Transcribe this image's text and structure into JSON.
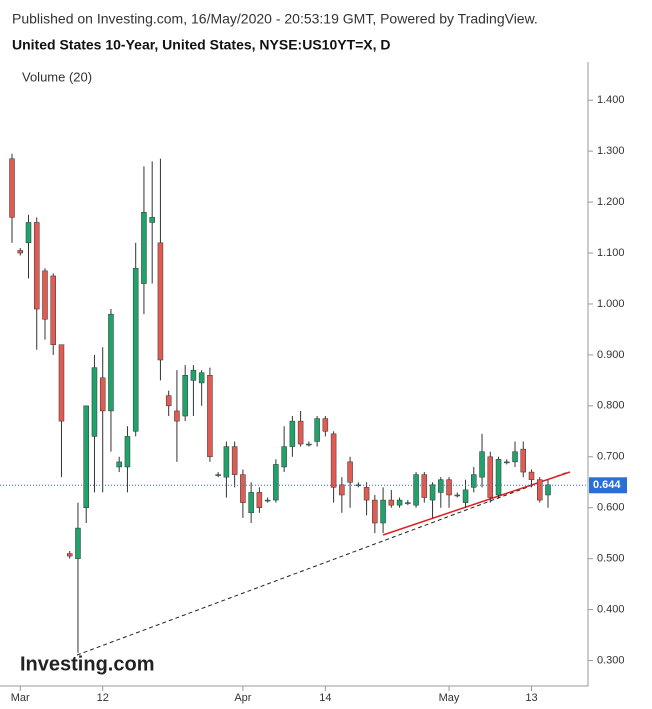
{
  "chart_data": {
    "type": "candlestick",
    "header": "Published on Investing.com, 16/May/2020 - 20:53:19 GMT, Powered by TradingView.",
    "title": "United States 10-Year, United States, NYSE:US10YT=X, D",
    "indicator": "Volume (20)",
    "watermark": "Investing.com",
    "categories": [
      null,
      "Mar",
      null,
      null,
      null,
      null,
      null,
      null,
      null,
      null,
      null,
      "12",
      null,
      null,
      null,
      null,
      null,
      null,
      null,
      null,
      null,
      null,
      null,
      null,
      null,
      null,
      null,
      null,
      "Apr",
      null,
      null,
      null,
      null,
      null,
      null,
      null,
      null,
      null,
      "14",
      null,
      null,
      null,
      null,
      null,
      null,
      null,
      null,
      null,
      null,
      null,
      null,
      null,
      null,
      "May",
      null,
      null,
      null,
      null,
      null,
      null,
      null,
      null,
      null,
      "13",
      null,
      null
    ],
    "open": [
      1.285,
      1.105,
      1.12,
      1.16,
      1.065,
      1.055,
      0.92,
      0.51,
      0.5,
      0.6,
      0.74,
      0.855,
      0.79,
      0.68,
      0.68,
      0.75,
      1.04,
      1.16,
      1.12,
      0.82,
      0.79,
      0.78,
      0.85,
      0.845,
      0.86,
      0.665,
      0.66,
      0.72,
      0.665,
      0.59,
      0.63,
      0.615,
      0.615,
      0.68,
      0.72,
      0.77,
      0.725,
      0.73,
      0.775,
      0.745,
      0.645,
      0.69,
      0.645,
      0.64,
      0.615,
      0.57,
      0.615,
      0.605,
      0.61,
      0.605,
      0.665,
      0.615,
      0.63,
      0.655,
      0.625,
      0.61,
      0.64,
      0.66,
      0.7,
      0.625,
      0.69,
      0.69,
      0.715,
      0.67,
      0.655,
      0.625
    ],
    "high": [
      1.295,
      1.11,
      1.175,
      1.17,
      1.07,
      1.06,
      0.92,
      0.515,
      0.61,
      0.8,
      0.9,
      0.915,
      0.99,
      0.7,
      0.76,
      1.12,
      1.27,
      1.28,
      1.285,
      0.83,
      0.87,
      0.88,
      0.88,
      0.87,
      0.875,
      0.67,
      0.73,
      0.73,
      0.675,
      0.65,
      0.64,
      0.62,
      0.695,
      0.76,
      0.78,
      0.79,
      0.73,
      0.78,
      0.78,
      0.75,
      0.66,
      0.7,
      0.65,
      0.65,
      0.625,
      0.64,
      0.635,
      0.62,
      0.615,
      0.67,
      0.67,
      0.65,
      0.66,
      0.66,
      0.63,
      0.655,
      0.68,
      0.745,
      0.71,
      0.7,
      0.695,
      0.73,
      0.73,
      0.675,
      0.66,
      0.655
    ],
    "low": [
      1.12,
      1.095,
      1.05,
      0.91,
      0.93,
      0.9,
      0.66,
      0.5,
      0.315,
      0.57,
      0.63,
      0.63,
      0.71,
      0.67,
      0.63,
      0.74,
      0.98,
      1.04,
      0.85,
      0.78,
      0.69,
      0.77,
      0.78,
      0.8,
      0.69,
      0.66,
      0.62,
      0.64,
      0.58,
      0.57,
      0.59,
      0.61,
      0.61,
      0.67,
      0.7,
      0.72,
      0.72,
      0.72,
      0.74,
      0.61,
      0.59,
      0.6,
      0.64,
      0.585,
      0.55,
      0.55,
      0.6,
      0.6,
      0.605,
      0.6,
      0.61,
      0.58,
      0.6,
      0.6,
      0.62,
      0.6,
      0.63,
      0.64,
      0.61,
      0.62,
      0.685,
      0.68,
      0.66,
      0.64,
      0.61,
      0.6
    ],
    "close": [
      1.17,
      1.1,
      1.16,
      0.99,
      0.97,
      0.92,
      0.77,
      0.505,
      0.56,
      0.8,
      0.875,
      0.79,
      0.98,
      0.69,
      0.74,
      1.07,
      1.18,
      1.17,
      0.89,
      0.8,
      0.77,
      0.86,
      0.87,
      0.865,
      0.7,
      0.665,
      0.72,
      0.665,
      0.61,
      0.63,
      0.6,
      0.615,
      0.685,
      0.72,
      0.77,
      0.725,
      0.725,
      0.775,
      0.75,
      0.64,
      0.625,
      0.65,
      0.645,
      0.615,
      0.57,
      0.615,
      0.605,
      0.615,
      0.61,
      0.665,
      0.62,
      0.645,
      0.655,
      0.625,
      0.625,
      0.635,
      0.665,
      0.71,
      0.62,
      0.695,
      0.69,
      0.71,
      0.67,
      0.655,
      0.615,
      0.645
    ],
    "up_color": "#1fa36b",
    "down_color": "#e05b52",
    "last_price": 0.644,
    "last_price_label": "0.644",
    "last_price_color": "#2a6fd6",
    "ylim": [
      0.25,
      1.475
    ],
    "yticks": [
      {
        "value": 0.3,
        "label": "0.300"
      },
      {
        "value": 0.4,
        "label": "0.400"
      },
      {
        "value": 0.5,
        "label": "0.500"
      },
      {
        "value": 0.6,
        "label": "0.600"
      },
      {
        "value": 0.7,
        "label": "0.700"
      },
      {
        "value": 0.8,
        "label": "0.800"
      },
      {
        "value": 0.9,
        "label": "0.900"
      },
      {
        "value": 1.0,
        "label": "1.000"
      },
      {
        "value": 1.1,
        "label": "1.100"
      },
      {
        "value": 1.2,
        "label": "1.200"
      },
      {
        "value": 1.3,
        "label": "1.300"
      },
      {
        "value": 1.4,
        "label": "1.400"
      }
    ]
  }
}
